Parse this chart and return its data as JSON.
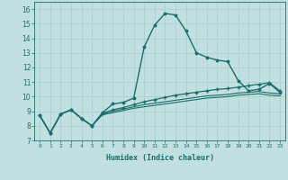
{
  "xlabel": "Humidex (Indice chaleur)",
  "ylabel": "",
  "xlim": [
    -0.5,
    23.5
  ],
  "ylim": [
    7,
    16.5
  ],
  "yticks": [
    7,
    8,
    9,
    10,
    11,
    12,
    13,
    14,
    15,
    16
  ],
  "xticks": [
    0,
    1,
    2,
    3,
    4,
    5,
    6,
    7,
    8,
    9,
    10,
    11,
    12,
    13,
    14,
    15,
    16,
    17,
    18,
    19,
    20,
    21,
    22,
    23
  ],
  "bg_color": "#c2e0e0",
  "line_color": "#1a6e6e",
  "grid_color": "#a8cece",
  "series": [
    {
      "x": [
        0,
        1,
        2,
        3,
        4,
        5,
        6,
        7,
        8,
        9,
        10,
        11,
        12,
        13,
        14,
        15,
        16,
        17,
        18,
        19,
        20,
        21,
        22,
        23
      ],
      "y": [
        8.7,
        7.5,
        8.8,
        9.1,
        8.5,
        8.0,
        8.9,
        9.5,
        9.6,
        9.9,
        13.4,
        14.9,
        15.7,
        15.6,
        14.5,
        13.0,
        12.7,
        12.5,
        12.4,
        11.1,
        10.4,
        10.5,
        10.9,
        10.3
      ],
      "marker": "*",
      "lw": 1.0
    },
    {
      "x": [
        0,
        1,
        2,
        3,
        4,
        5,
        6,
        7,
        8,
        9,
        10,
        11,
        12,
        13,
        14,
        15,
        16,
        17,
        18,
        19,
        20,
        21,
        22,
        23
      ],
      "y": [
        8.7,
        7.5,
        8.8,
        9.1,
        8.5,
        8.0,
        8.85,
        9.1,
        9.25,
        9.45,
        9.65,
        9.8,
        9.95,
        10.1,
        10.2,
        10.3,
        10.4,
        10.5,
        10.55,
        10.65,
        10.75,
        10.85,
        10.95,
        10.4
      ],
      "marker": "+",
      "lw": 0.9
    },
    {
      "x": [
        0,
        1,
        2,
        3,
        4,
        5,
        6,
        7,
        8,
        9,
        10,
        11,
        12,
        13,
        14,
        15,
        16,
        17,
        18,
        19,
        20,
        21,
        22,
        23
      ],
      "y": [
        8.7,
        7.5,
        8.8,
        9.1,
        8.5,
        8.0,
        8.8,
        9.0,
        9.15,
        9.3,
        9.45,
        9.55,
        9.65,
        9.75,
        9.85,
        9.95,
        10.05,
        10.1,
        10.15,
        10.25,
        10.3,
        10.35,
        10.25,
        10.2
      ],
      "marker": null,
      "lw": 0.8
    },
    {
      "x": [
        0,
        1,
        2,
        3,
        4,
        5,
        6,
        7,
        8,
        9,
        10,
        11,
        12,
        13,
        14,
        15,
        16,
        17,
        18,
        19,
        20,
        21,
        22,
        23
      ],
      "y": [
        8.7,
        7.5,
        8.8,
        9.1,
        8.5,
        8.0,
        8.75,
        8.9,
        9.05,
        9.2,
        9.3,
        9.4,
        9.5,
        9.6,
        9.7,
        9.8,
        9.9,
        9.95,
        10.0,
        10.1,
        10.15,
        10.2,
        10.1,
        10.05
      ],
      "marker": null,
      "lw": 0.8
    }
  ]
}
